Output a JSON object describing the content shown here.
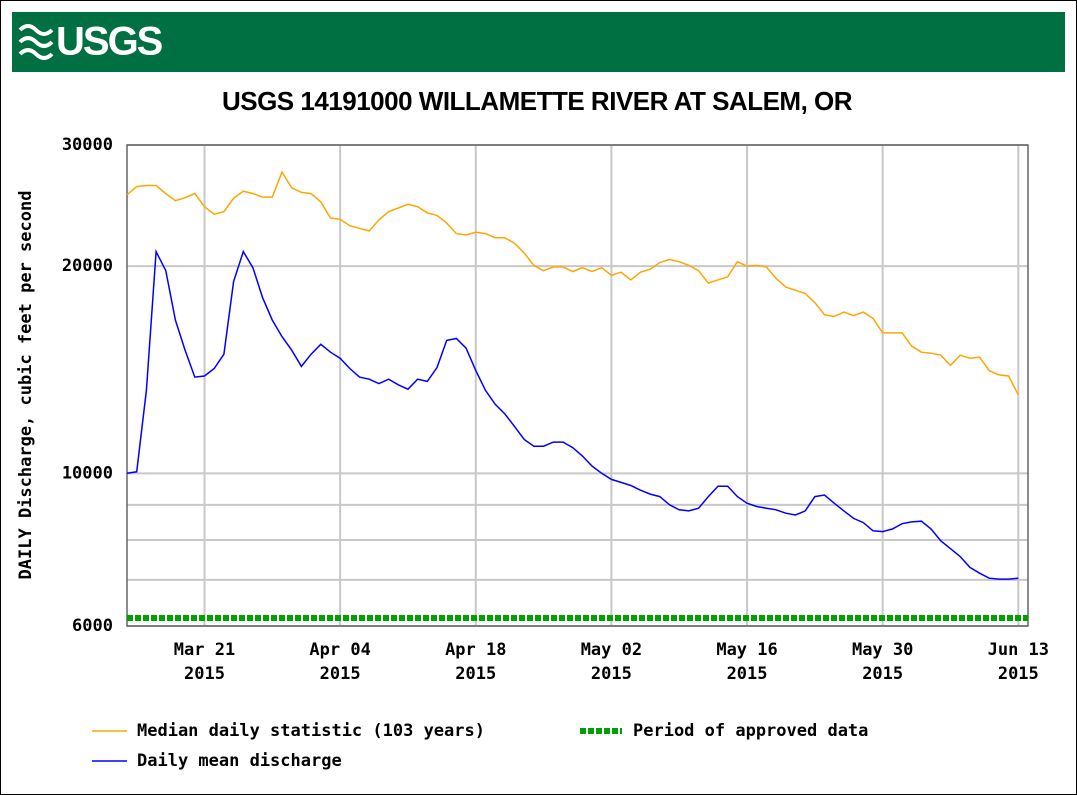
{
  "logo": "USGS",
  "chart_data": {
    "type": "line",
    "title": "USGS 14191000 WILLAMETTE RIVER AT SALEM, OR",
    "y_label": "DAILY Discharge, cubic feet per second",
    "log_y": true,
    "grid": true,
    "ylim": [
      6000,
      30000
    ],
    "yticks": [
      6000,
      10000,
      20000,
      30000
    ],
    "yminor": [
      7000,
      8000,
      9000
    ],
    "xlim": [
      "2015-03-13",
      "2015-06-14"
    ],
    "xticks": [
      {
        "value": "2015-03-21",
        "label": [
          "Mar 21",
          "2015"
        ]
      },
      {
        "value": "2015-04-04",
        "label": [
          "Apr 04",
          "2015"
        ]
      },
      {
        "value": "2015-04-18",
        "label": [
          "Apr 18",
          "2015"
        ]
      },
      {
        "value": "2015-05-02",
        "label": [
          "May 02",
          "2015"
        ]
      },
      {
        "value": "2015-05-16",
        "label": [
          "May 16",
          "2015"
        ]
      },
      {
        "value": "2015-05-30",
        "label": [
          "May 30",
          "2015"
        ]
      },
      {
        "value": "2015-06-13",
        "label": [
          "Jun 13",
          "2015"
        ]
      }
    ],
    "x": [
      "2015-03-13",
      "2015-03-14",
      "2015-03-15",
      "2015-03-16",
      "2015-03-17",
      "2015-03-18",
      "2015-03-19",
      "2015-03-20",
      "2015-03-21",
      "2015-03-22",
      "2015-03-23",
      "2015-03-24",
      "2015-03-25",
      "2015-03-26",
      "2015-03-27",
      "2015-03-28",
      "2015-03-29",
      "2015-03-30",
      "2015-03-31",
      "2015-04-01",
      "2015-04-02",
      "2015-04-03",
      "2015-04-04",
      "2015-04-05",
      "2015-04-06",
      "2015-04-07",
      "2015-04-08",
      "2015-04-09",
      "2015-04-10",
      "2015-04-11",
      "2015-04-12",
      "2015-04-13",
      "2015-04-14",
      "2015-04-15",
      "2015-04-16",
      "2015-04-17",
      "2015-04-18",
      "2015-04-19",
      "2015-04-20",
      "2015-04-21",
      "2015-04-22",
      "2015-04-23",
      "2015-04-24",
      "2015-04-25",
      "2015-04-26",
      "2015-04-27",
      "2015-04-28",
      "2015-04-29",
      "2015-04-30",
      "2015-05-01",
      "2015-05-02",
      "2015-05-03",
      "2015-05-04",
      "2015-05-05",
      "2015-05-06",
      "2015-05-07",
      "2015-05-08",
      "2015-05-09",
      "2015-05-10",
      "2015-05-11",
      "2015-05-12",
      "2015-05-13",
      "2015-05-14",
      "2015-05-15",
      "2015-05-16",
      "2015-05-17",
      "2015-05-18",
      "2015-05-19",
      "2015-05-20",
      "2015-05-21",
      "2015-05-22",
      "2015-05-23",
      "2015-05-24",
      "2015-05-25",
      "2015-05-26",
      "2015-05-27",
      "2015-05-28",
      "2015-05-29",
      "2015-05-30",
      "2015-05-31",
      "2015-06-01",
      "2015-06-02",
      "2015-06-03",
      "2015-06-04",
      "2015-06-05",
      "2015-06-06",
      "2015-06-07",
      "2015-06-08",
      "2015-06-09",
      "2015-06-10",
      "2015-06-11",
      "2015-06-12",
      "2015-06-13"
    ],
    "series": [
      {
        "name": "Median daily statistic (103 years)",
        "color": "#ffa500",
        "values": [
          25400,
          26100,
          26200,
          26200,
          25500,
          24900,
          25150,
          25500,
          24400,
          23800,
          24000,
          25100,
          25700,
          25500,
          25200,
          25200,
          27400,
          26000,
          25600,
          25500,
          24800,
          23500,
          23400,
          22900,
          22700,
          22500,
          23350,
          24000,
          24300,
          24600,
          24400,
          23900,
          23700,
          23100,
          22300,
          22200,
          22400,
          22300,
          22000,
          22000,
          21600,
          20900,
          20050,
          19700,
          19950,
          19950,
          19650,
          19900,
          19650,
          19900,
          19400,
          19600,
          19100,
          19600,
          19800,
          20250,
          20450,
          20300,
          20050,
          19700,
          18900,
          19100,
          19300,
          20300,
          20000,
          20050,
          19950,
          19200,
          18650,
          18450,
          18250,
          17700,
          17000,
          16900,
          17150,
          16950,
          17150,
          16800,
          16000,
          16000,
          16000,
          15300,
          15000,
          14950,
          14850,
          14350,
          14850,
          14700,
          14750,
          14100,
          13900,
          13850,
          13000
        ]
      },
      {
        "name": "Daily mean discharge",
        "color": "#0000ff",
        "values": [
          10000,
          10050,
          13200,
          21000,
          19700,
          16700,
          15100,
          13800,
          13850,
          14200,
          14900,
          19000,
          21000,
          19900,
          18000,
          16700,
          15800,
          15100,
          14300,
          14900,
          15400,
          15000,
          14700,
          14200,
          13800,
          13700,
          13500,
          13700,
          13450,
          13250,
          13700,
          13600,
          14250,
          15600,
          15700,
          15200,
          14100,
          13200,
          12600,
          12200,
          11700,
          11200,
          10950,
          10950,
          11100,
          11100,
          10900,
          10600,
          10250,
          10000,
          9800,
          9700,
          9600,
          9450,
          9330,
          9250,
          9000,
          8850,
          8820,
          8900,
          9250,
          9580,
          9580,
          9250,
          9050,
          8950,
          8900,
          8850,
          8750,
          8700,
          8820,
          9250,
          9300,
          9050,
          8820,
          8600,
          8480,
          8250,
          8230,
          8300,
          8450,
          8500,
          8520,
          8300,
          7980,
          7770,
          7570,
          7300,
          7160,
          7040,
          7020,
          7020,
          7040
        ]
      }
    ],
    "bands": [
      {
        "name": "Period of approved data",
        "color": "#00a000",
        "start": "2015-03-13",
        "end": "2015-06-14"
      }
    ]
  }
}
